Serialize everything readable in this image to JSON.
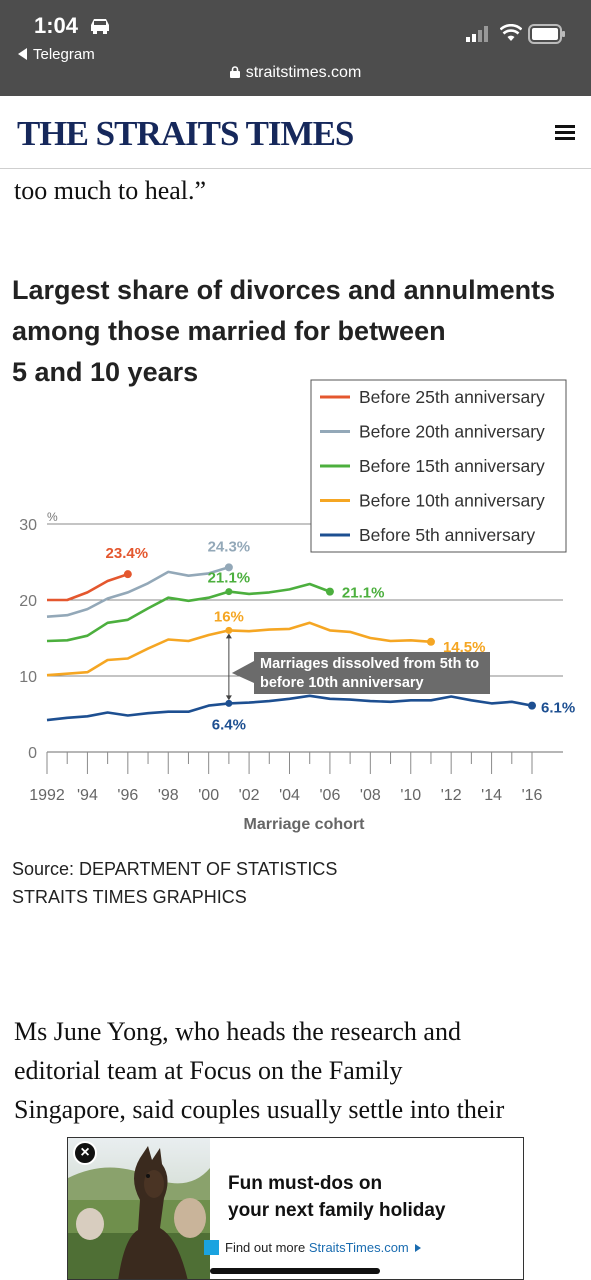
{
  "status": {
    "time": "1:04",
    "back_app": "Telegram",
    "url": "straitstimes.com"
  },
  "header": {
    "logo": "THE STRAITS TIMES"
  },
  "article": {
    "para_top": "too much to heal.”",
    "para_bottom_lines": [
      "Ms June Yong, who heads the research and",
      "editorial team at Focus on the Family",
      "Singapore, said couples usually settle into their"
    ]
  },
  "chart_data": {
    "type": "line",
    "title_lines": [
      "Largest share of divorces and annulments",
      "among those married for between",
      "5 and 10 years"
    ],
    "y_unit": "%",
    "xlabel": "Marriage cohort",
    "ylabel": "",
    "ylim": [
      0,
      30
    ],
    "y_ticks": [
      0,
      10,
      20,
      30
    ],
    "xlim": [
      1992,
      2016
    ],
    "x_tick_labels": [
      {
        "x": 1992,
        "label": "1992"
      },
      {
        "x": 1994,
        "label": "'94"
      },
      {
        "x": 1996,
        "label": "'96"
      },
      {
        "x": 1998,
        "label": "'98"
      },
      {
        "x": 2000,
        "label": "'00"
      },
      {
        "x": 2002,
        "label": "'02"
      },
      {
        "x": 2004,
        "label": "'04"
      },
      {
        "x": 2006,
        "label": "'06"
      },
      {
        "x": 2008,
        "label": "'08"
      },
      {
        "x": 2010,
        "label": "'10"
      },
      {
        "x": 2012,
        "label": "'12"
      },
      {
        "x": 2014,
        "label": "'14"
      },
      {
        "x": 2016,
        "label": "'16"
      }
    ],
    "legend_position": "top-right",
    "series": [
      {
        "name": "Before 25th anniversary",
        "color": "#e4572e",
        "x": [
          1992,
          1993,
          1994,
          1995,
          1996
        ],
        "values": [
          20.0,
          20.0,
          21.0,
          22.5,
          23.4
        ],
        "end_label": "23.4%"
      },
      {
        "name": "Before 20th anniversary",
        "color": "#93a8b8",
        "x": [
          1992,
          1993,
          1994,
          1995,
          1996,
          1997,
          1998,
          1999,
          2000,
          2001
        ],
        "values": [
          17.8,
          18.0,
          18.8,
          20.2,
          21.0,
          22.2,
          23.7,
          23.2,
          23.5,
          24.3
        ],
        "end_label": "24.3%"
      },
      {
        "name": "Before 15th anniversary",
        "color": "#4caf3e",
        "x": [
          1992,
          1993,
          1994,
          1995,
          1996,
          1997,
          1998,
          1999,
          2000,
          2001,
          2002,
          2003,
          2004,
          2005,
          2006
        ],
        "values": [
          14.6,
          14.7,
          15.3,
          17.0,
          17.4,
          18.9,
          20.3,
          19.9,
          20.3,
          21.1,
          20.8,
          21.0,
          21.4,
          22.1,
          21.1
        ],
        "end_label": "21.1%",
        "annotations": [
          {
            "x": 2001,
            "value": 21.1,
            "label": "21.1%"
          }
        ]
      },
      {
        "name": "Before 10th anniversary",
        "color": "#f5a623",
        "x": [
          1992,
          1993,
          1994,
          1995,
          1996,
          1997,
          1998,
          1999,
          2000,
          2001,
          2002,
          2003,
          2004,
          2005,
          2006,
          2007,
          2008,
          2009,
          2010,
          2011
        ],
        "values": [
          10.1,
          10.3,
          10.5,
          12.1,
          12.3,
          13.6,
          14.8,
          14.6,
          15.4,
          16.0,
          15.9,
          16.1,
          16.2,
          17.0,
          16.0,
          15.8,
          15.0,
          14.6,
          14.7,
          14.5
        ],
        "end_label": "14.5%",
        "annotations": [
          {
            "x": 2001,
            "value": 16.0,
            "label": "16%"
          }
        ]
      },
      {
        "name": "Before 5th anniversary",
        "color": "#1d4f91",
        "x": [
          1992,
          1993,
          1994,
          1995,
          1996,
          1997,
          1998,
          1999,
          2000,
          2001,
          2002,
          2003,
          2004,
          2005,
          2006,
          2007,
          2008,
          2009,
          2010,
          2011,
          2012,
          2013,
          2014,
          2015,
          2016
        ],
        "values": [
          4.2,
          4.5,
          4.7,
          5.2,
          4.8,
          5.1,
          5.3,
          5.3,
          6.1,
          6.4,
          6.5,
          6.7,
          7.0,
          7.4,
          7.0,
          6.9,
          6.7,
          6.6,
          6.8,
          6.8,
          7.3,
          6.8,
          6.4,
          6.6,
          6.1
        ],
        "end_label": "6.1%",
        "annotations": [
          {
            "x": 2001,
            "value": 6.4,
            "label": "6.4%"
          }
        ]
      }
    ],
    "callout": {
      "x": 2001,
      "from_value": 6.4,
      "to_value": 16.0,
      "lines": [
        "Marriages dissolved from 5th to",
        "before 10th anniversary"
      ]
    }
  },
  "source_lines": [
    "Source: DEPARTMENT OF STATISTICS",
    "STRAITS TIMES GRAPHICS"
  ],
  "ad": {
    "headline_lines": [
      "Fun must-dos on",
      "your next family holiday"
    ],
    "cta_text": "Find out more",
    "cta_brand": "StraitsTimes.com",
    "close_label": "×"
  }
}
